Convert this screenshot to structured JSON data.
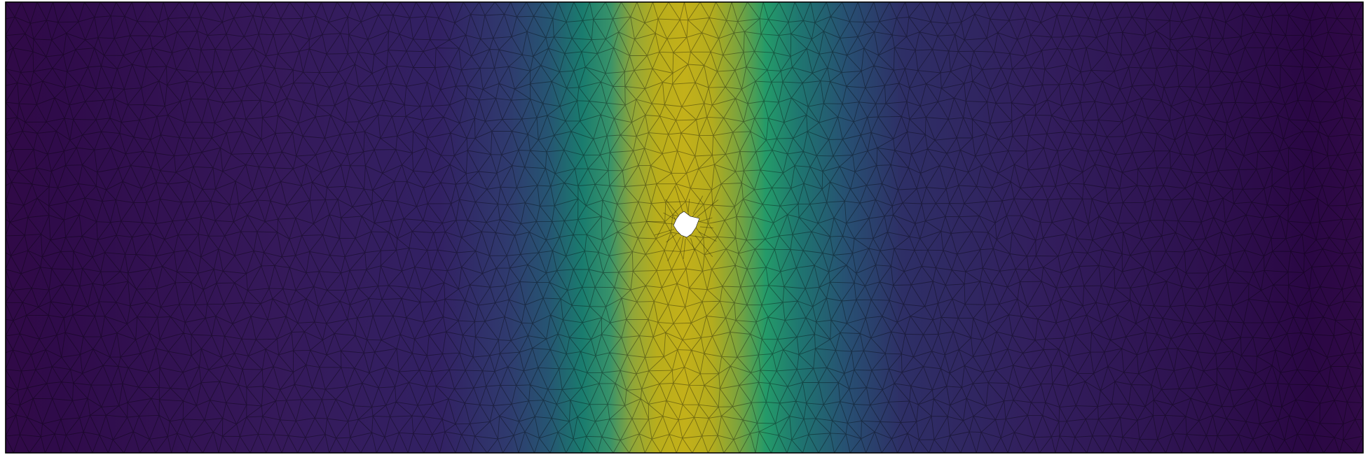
{
  "figure": {
    "type": "finite-element-mesh-field",
    "colormap": "viridis",
    "colormap_stops": [
      "#440154",
      "#3b528b",
      "#21918c",
      "#5ec962",
      "#fde725"
    ],
    "mesh_line_color": "#000000",
    "frame_color": "#000000",
    "background": "#ffffff",
    "hole_fill": "#ffffff",
    "field_description_values": {
      "peak_band_center_fraction": 0.5,
      "peak_level": 0.78,
      "background_level": 0.02
    }
  }
}
